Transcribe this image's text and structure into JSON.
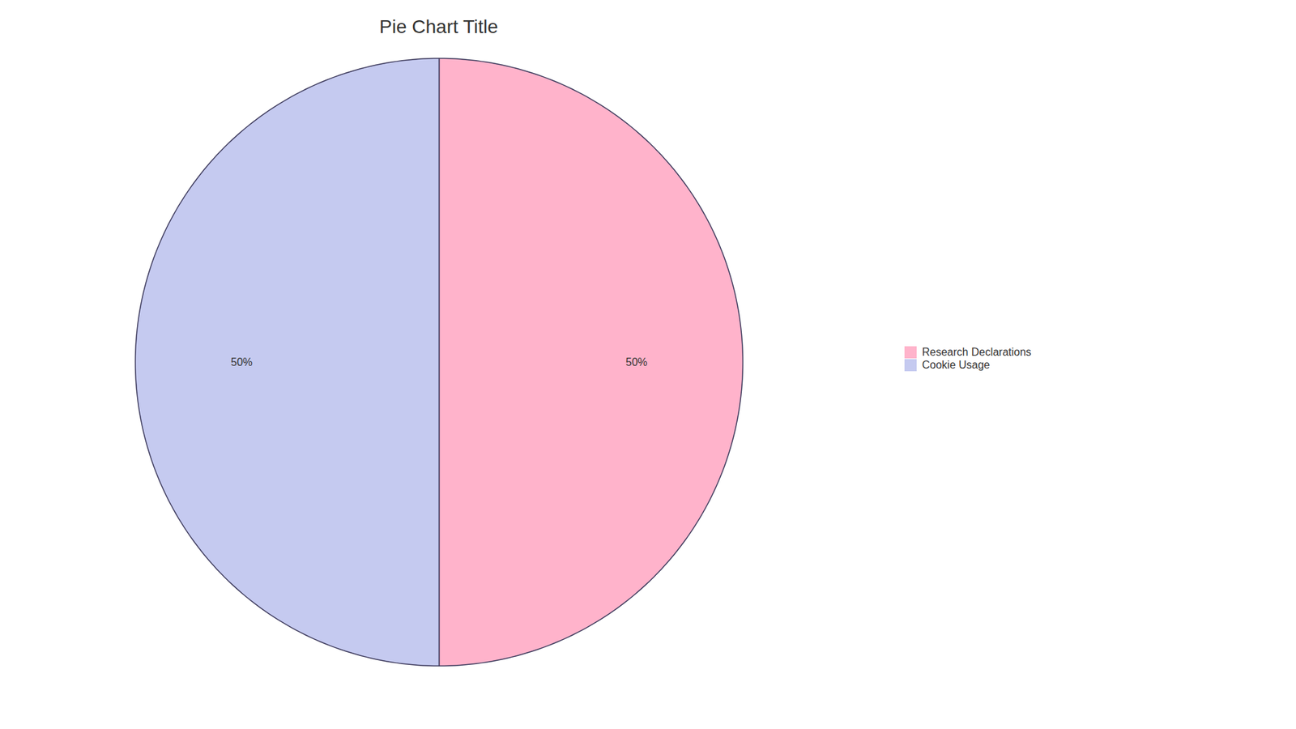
{
  "chart_data": {
    "type": "pie",
    "title": "Pie Chart Title",
    "categories": [
      "Research Declarations",
      "Cookie Usage"
    ],
    "values": [
      50,
      50
    ],
    "value_labels": [
      "50%",
      "50%"
    ],
    "colors": [
      "#FFB3CB",
      "#C5CAF0"
    ],
    "data_labels": true,
    "legend": "right"
  }
}
